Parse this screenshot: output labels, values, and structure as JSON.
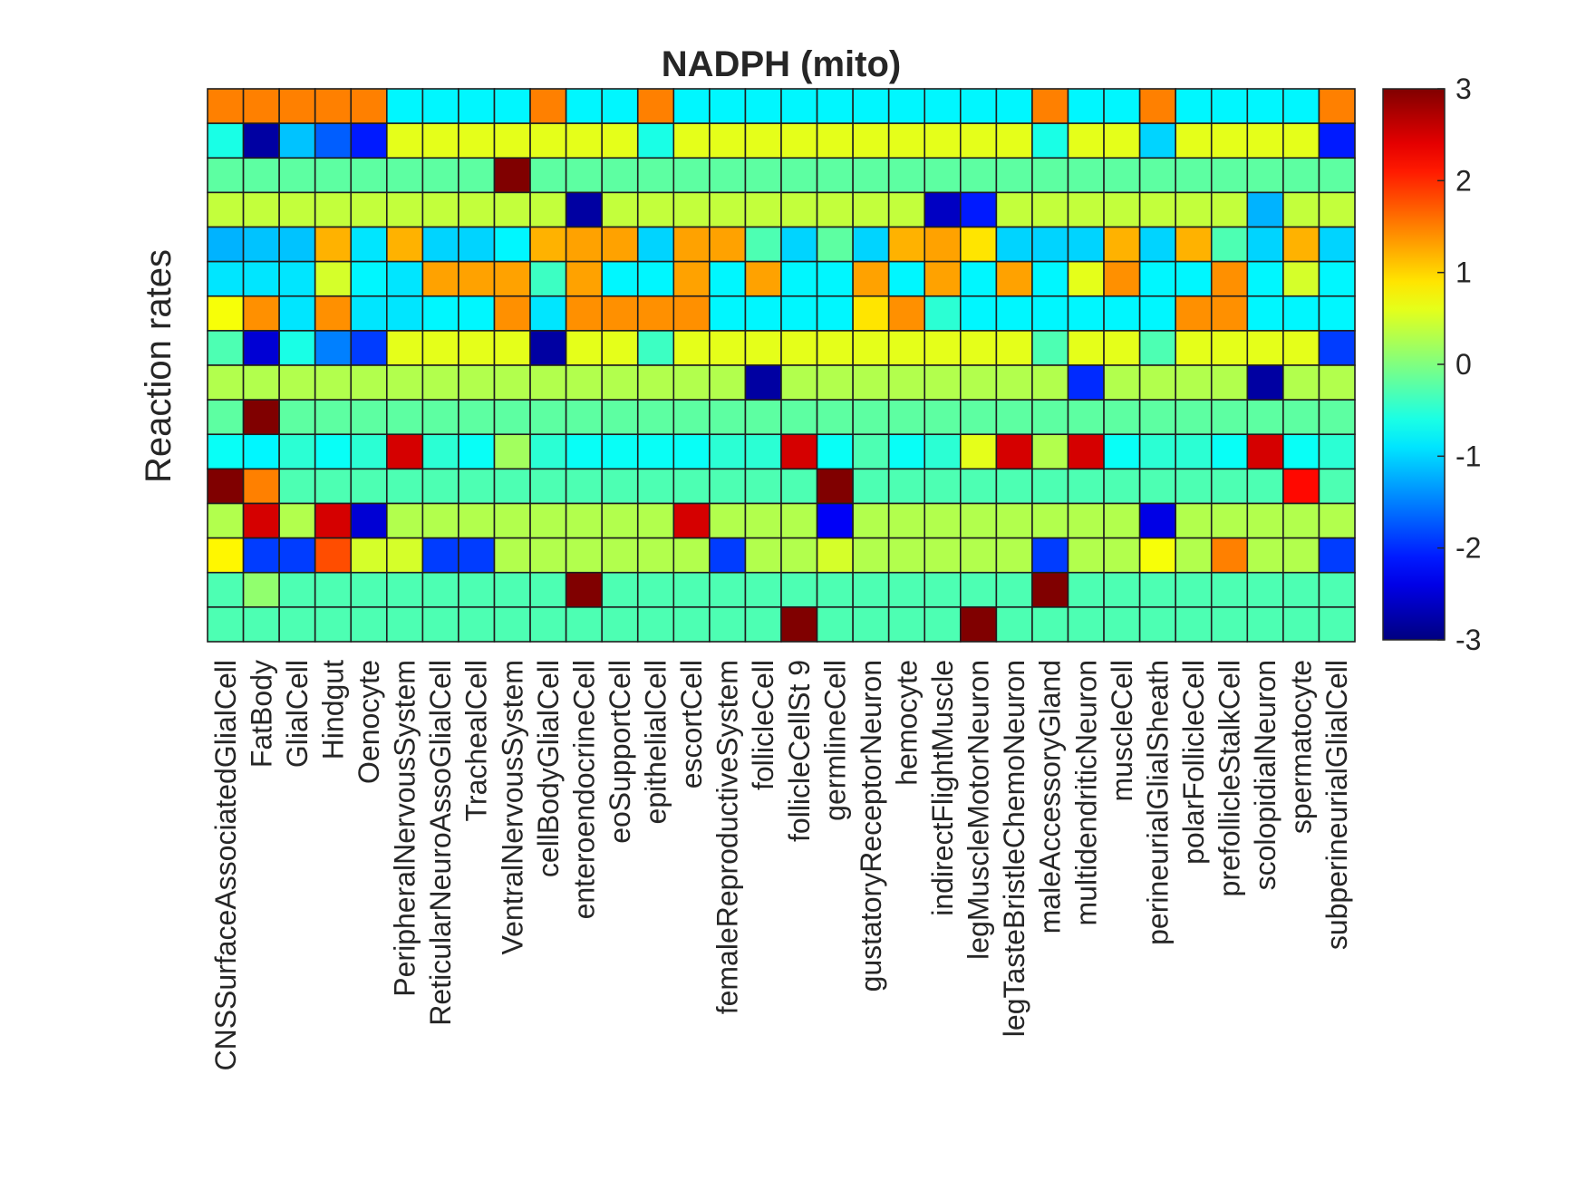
{
  "chart_data": {
    "type": "heatmap",
    "title": "NADPH (mito)",
    "ylabel": "Reaction rates",
    "xlabel": "",
    "x_categories": [
      "CNSSurfaceAssociatedGlialCell",
      "FatBody",
      "GlialCell",
      "Hindgut",
      "Oenocyte",
      "PeripheralNervousSystem",
      "ReticularNeuroAssoGlialCell",
      "TrachealCell",
      "VentralNervousSystem",
      "cellBodyGlialCell",
      "enteroendocrineCell",
      "eoSupportCell",
      "epithelialCell",
      "escortCell",
      "femaleReproductiveSystem",
      "follicleCell",
      "follicleCellSt 9",
      "germlineCell",
      "gustatoryReceptorNeuron",
      "hemocyte",
      "indirectFlightMuscle",
      "legMuscleMotorNeuron",
      "legTasteBristleChemoNeuron",
      "maleAccessoryGland",
      "multidendriticNeuron",
      "muscleCell",
      "perineurialGlialSheath",
      "polarFollicleCell",
      "prefollicleStalkCell",
      "scolopidialNeuron",
      "spermatocyte",
      "subperineurialGlialCell"
    ],
    "colorbar": {
      "min": -3,
      "max": 3,
      "ticks": [
        "3",
        "2",
        "1",
        "0",
        "-1",
        "-2",
        "-3"
      ],
      "colormap": "jet"
    },
    "values": [
      [
        1.5,
        1.5,
        1.5,
        1.5,
        1.5,
        -0.8,
        -0.8,
        -0.8,
        -0.8,
        1.5,
        -0.8,
        -0.8,
        1.5,
        -0.8,
        -0.8,
        -0.8,
        -0.8,
        -0.8,
        -0.8,
        -0.8,
        -0.8,
        -0.8,
        -0.8,
        1.5,
        -0.8,
        -0.8,
        1.5,
        -0.8,
        -0.8,
        -0.8,
        -0.8,
        1.5
      ],
      [
        -0.6,
        -2.8,
        -1.1,
        -1.7,
        -2.1,
        0.6,
        0.6,
        0.6,
        0.6,
        0.6,
        0.6,
        0.6,
        -0.6,
        0.6,
        0.6,
        0.6,
        0.6,
        0.6,
        0.6,
        0.6,
        0.6,
        0.6,
        0.6,
        -0.6,
        0.6,
        0.6,
        -1.0,
        0.6,
        0.6,
        0.6,
        0.6,
        -2.1
      ],
      [
        -0.2,
        -0.2,
        -0.2,
        -0.2,
        -0.2,
        -0.2,
        -0.2,
        -0.2,
        3.0,
        -0.2,
        -0.2,
        -0.2,
        -0.2,
        -0.2,
        -0.2,
        -0.2,
        -0.2,
        -0.2,
        -0.2,
        -0.2,
        -0.2,
        -0.2,
        -0.2,
        -0.2,
        -0.2,
        -0.2,
        -0.2,
        -0.2,
        -0.2,
        -0.2,
        -0.2,
        -0.2
      ],
      [
        0.4,
        0.4,
        0.4,
        0.4,
        0.4,
        0.4,
        0.4,
        0.4,
        0.4,
        0.4,
        -2.8,
        0.4,
        0.4,
        0.4,
        0.4,
        0.4,
        0.4,
        0.4,
        0.4,
        0.4,
        -2.6,
        -2.1,
        0.4,
        0.4,
        0.4,
        0.4,
        0.4,
        0.4,
        0.4,
        -1.2,
        0.4,
        0.4
      ],
      [
        -1.2,
        -1.1,
        -1.1,
        1.2,
        -0.9,
        1.2,
        -1.0,
        -1.0,
        -0.8,
        1.2,
        1.3,
        1.3,
        -1.0,
        1.3,
        1.3,
        -0.3,
        -1.0,
        -0.2,
        -1.0,
        1.2,
        1.3,
        0.9,
        -1.0,
        -1.0,
        -1.0,
        1.2,
        -1.0,
        1.2,
        -0.3,
        -1.0,
        1.2,
        -1.0
      ],
      [
        -0.9,
        -0.9,
        -0.9,
        0.5,
        -0.8,
        -0.9,
        1.3,
        1.3,
        1.3,
        -0.4,
        1.3,
        -0.8,
        -0.8,
        1.3,
        -0.8,
        1.3,
        -0.8,
        -0.8,
        1.3,
        -0.8,
        1.3,
        -0.8,
        1.3,
        -0.8,
        0.6,
        1.4,
        -0.8,
        -0.8,
        1.4,
        -0.8,
        0.5,
        -0.8
      ],
      [
        0.7,
        1.4,
        -0.9,
        1.4,
        -0.9,
        -0.9,
        -0.8,
        -0.8,
        1.4,
        -0.9,
        1.4,
        1.4,
        1.4,
        1.4,
        -0.8,
        -0.8,
        -0.8,
        -0.8,
        0.9,
        1.4,
        -0.5,
        -0.8,
        -0.8,
        -0.8,
        -0.8,
        -0.8,
        -0.8,
        1.4,
        1.4,
        -0.8,
        -0.8,
        -0.8
      ],
      [
        -0.3,
        -2.5,
        -0.6,
        -1.5,
        -1.9,
        0.6,
        0.6,
        0.6,
        0.6,
        -2.8,
        0.6,
        0.6,
        -0.4,
        0.6,
        0.6,
        0.6,
        0.6,
        0.6,
        0.6,
        0.6,
        0.6,
        0.6,
        0.6,
        -0.3,
        0.6,
        0.6,
        -0.3,
        0.6,
        0.6,
        0.6,
        0.6,
        -1.9
      ],
      [
        0.3,
        0.3,
        0.3,
        0.3,
        0.3,
        0.3,
        0.3,
        0.3,
        0.3,
        0.3,
        0.3,
        0.3,
        0.3,
        0.3,
        0.3,
        -2.8,
        0.3,
        0.3,
        0.3,
        0.3,
        0.3,
        0.3,
        0.3,
        0.3,
        -2.0,
        0.3,
        0.3,
        0.3,
        0.3,
        -2.8,
        0.3,
        0.3
      ],
      [
        -0.2,
        3.0,
        -0.2,
        -0.2,
        -0.2,
        -0.2,
        -0.2,
        -0.2,
        -0.2,
        -0.2,
        -0.2,
        -0.2,
        -0.2,
        -0.2,
        -0.2,
        -0.2,
        -0.2,
        -0.2,
        -0.2,
        -0.2,
        -0.2,
        -0.2,
        -0.2,
        -0.2,
        -0.2,
        -0.2,
        -0.2,
        -0.2,
        -0.2,
        -0.2,
        -0.2,
        -0.2
      ],
      [
        -0.7,
        -0.8,
        -0.5,
        -0.7,
        -0.5,
        2.5,
        -0.5,
        -0.7,
        0.2,
        -0.5,
        -0.7,
        -0.7,
        -0.7,
        -0.7,
        -0.5,
        -0.5,
        2.5,
        -0.7,
        -0.3,
        -0.7,
        -0.5,
        0.6,
        2.5,
        0.3,
        2.5,
        -0.7,
        -0.5,
        -0.5,
        -0.7,
        2.5,
        -0.7,
        -0.5
      ],
      [
        3.0,
        1.5,
        -0.3,
        -0.3,
        -0.3,
        -0.3,
        -0.3,
        -0.3,
        -0.3,
        -0.3,
        -0.3,
        -0.3,
        -0.3,
        -0.3,
        -0.3,
        -0.3,
        -0.3,
        3.0,
        -0.3,
        -0.3,
        -0.3,
        -0.3,
        -0.3,
        -0.3,
        -0.3,
        -0.3,
        -0.3,
        -0.3,
        -0.3,
        -0.3,
        2.2,
        -0.3
      ],
      [
        0.3,
        2.5,
        0.3,
        2.5,
        -2.5,
        0.3,
        0.3,
        0.3,
        0.3,
        0.3,
        0.3,
        0.3,
        0.3,
        2.5,
        0.3,
        0.3,
        0.3,
        -2.3,
        0.3,
        0.3,
        0.3,
        0.3,
        0.3,
        0.3,
        0.3,
        0.3,
        -2.4,
        0.3,
        0.3,
        0.3,
        0.3,
        0.3
      ],
      [
        0.8,
        -1.9,
        -1.9,
        1.8,
        0.5,
        0.5,
        -1.9,
        -1.9,
        0.3,
        0.3,
        0.3,
        0.3,
        0.3,
        0.3,
        -1.9,
        0.3,
        0.3,
        0.5,
        0.3,
        0.3,
        0.3,
        0.3,
        0.3,
        -1.9,
        0.3,
        0.3,
        0.7,
        0.3,
        1.5,
        0.3,
        0.3,
        -1.9
      ],
      [
        -0.3,
        0.1,
        -0.3,
        -0.3,
        -0.3,
        -0.3,
        -0.3,
        -0.3,
        -0.3,
        -0.3,
        3.0,
        -0.3,
        -0.3,
        -0.3,
        -0.3,
        -0.3,
        -0.3,
        -0.3,
        -0.3,
        -0.3,
        -0.3,
        -0.3,
        -0.3,
        3.0,
        -0.3,
        -0.3,
        -0.3,
        -0.3,
        -0.3,
        -0.3,
        -0.3,
        -0.3
      ],
      [
        -0.3,
        -0.3,
        -0.3,
        -0.3,
        -0.3,
        -0.3,
        -0.3,
        -0.3,
        -0.3,
        -0.3,
        -0.3,
        -0.3,
        -0.3,
        -0.3,
        -0.3,
        -0.3,
        3.0,
        -0.3,
        -0.3,
        -0.3,
        -0.3,
        3.0,
        -0.3,
        -0.3,
        -0.3,
        -0.3,
        -0.3,
        -0.3,
        -0.3,
        -0.3,
        -0.3,
        -0.3
      ]
    ],
    "grid": true,
    "legend": "none"
  }
}
